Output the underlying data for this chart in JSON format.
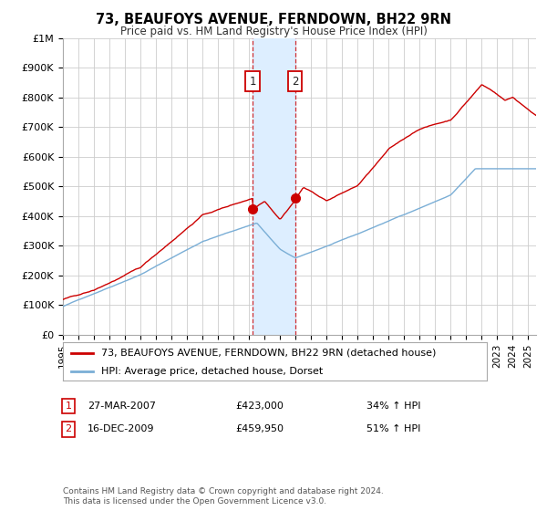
{
  "title": "73, BEAUFOYS AVENUE, FERNDOWN, BH22 9RN",
  "subtitle": "Price paid vs. HM Land Registry's House Price Index (HPI)",
  "legend_line1": "73, BEAUFOYS AVENUE, FERNDOWN, BH22 9RN (detached house)",
  "legend_line2": "HPI: Average price, detached house, Dorset",
  "sale1_label": "1",
  "sale1_date": "27-MAR-2007",
  "sale1_price": "£423,000",
  "sale1_hpi": "34% ↑ HPI",
  "sale1_year": 2007.23,
  "sale1_value": 423000,
  "sale2_label": "2",
  "sale2_date": "16-DEC-2009",
  "sale2_price": "£459,950",
  "sale2_hpi": "51% ↑ HPI",
  "sale2_year": 2009.96,
  "sale2_value": 459950,
  "footer1": "Contains HM Land Registry data © Crown copyright and database right 2024.",
  "footer2": "This data is licensed under the Open Government Licence v3.0.",
  "ylim": [
    0,
    1000000
  ],
  "xlim_start": 1995.0,
  "xlim_end": 2025.5,
  "price_line_color": "#cc0000",
  "hpi_line_color": "#7aaed6",
  "shade_color": "#ddeeff",
  "dashed_color": "#cc0000",
  "marker_box_color": "#cc0000",
  "background": "#ffffff",
  "grid_color": "#cccccc"
}
